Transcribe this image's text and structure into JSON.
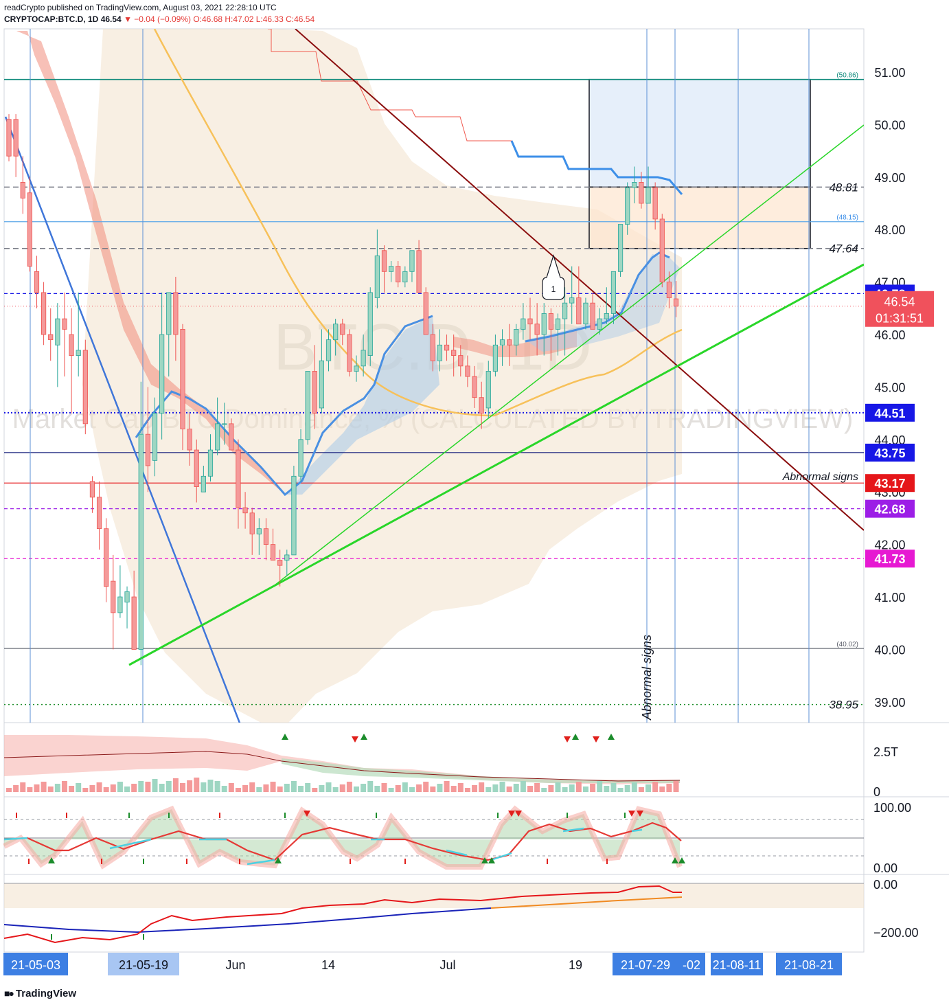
{
  "header": {
    "line1": "readCrypto published on TradingView.com, August 03, 2021 22:28:10 UTC",
    "symbol": "CRYPTOCAP:BTC.D, 1D",
    "last": "46.54",
    "change": "▼ −0.04 (−0.09%)",
    "ohlc": "O:46.68 H:47.02 L:46.33 C:46.54"
  },
  "watermark": {
    "ticker": "BTC.D, 1D",
    "description": "Market Cap BTC Dominance, % (CALCULATED BY TRADINGVIEW)"
  },
  "chart_data": {
    "type": "candlestick",
    "symbol": "CRYPTOCAP:BTC.D",
    "interval": "1D",
    "ylim": [
      38.6,
      51.9
    ],
    "y_ticks": [
      "51.00",
      "50.00",
      "49.00",
      "48.00",
      "45.00",
      "42.00",
      "41.00",
      "40.00",
      "39.00"
    ],
    "x_ticks": [
      {
        "label": "21-05-03",
        "highlight": true
      },
      {
        "label": "21-05-19",
        "highlight": true
      },
      {
        "label": "Jun",
        "highlight": false
      },
      {
        "label": "14",
        "highlight": false
      },
      {
        "label": "Jul",
        "highlight": false
      },
      {
        "label": "19",
        "highlight": false
      },
      {
        "label": "21-07-29",
        "highlight": true
      },
      {
        "label": "-02",
        "highlight": true
      },
      {
        "label": "21-08-11",
        "highlight": true
      },
      {
        "label": "21-08-21",
        "highlight": true
      }
    ],
    "candles_ohlc": [
      [
        50.1,
        50.2,
        49.3,
        49.4
      ],
      [
        50.1,
        50.2,
        49.0,
        49.4
      ],
      [
        48.9,
        49.4,
        48.3,
        48.6
      ],
      [
        48.7,
        49.0,
        47.2,
        47.3
      ],
      [
        47.2,
        47.5,
        46.5,
        46.8
      ],
      [
        46.8,
        47.0,
        45.8,
        46.0
      ],
      [
        46.0,
        46.5,
        45.5,
        45.9
      ],
      [
        45.8,
        46.6,
        45.0,
        46.3
      ],
      [
        46.3,
        46.8,
        45.2,
        46.1
      ],
      [
        46.0,
        46.5,
        44.5,
        45.6
      ],
      [
        45.6,
        46.8,
        45.2,
        45.7
      ],
      [
        45.7,
        45.9,
        44.1,
        44.3
      ],
      [
        43.2,
        43.3,
        42.6,
        42.9
      ],
      [
        42.9,
        43.2,
        41.9,
        42.3
      ],
      [
        42.3,
        42.5,
        40.9,
        41.2
      ],
      [
        41.3,
        41.8,
        40.0,
        40.7
      ],
      [
        40.7,
        41.6,
        40.6,
        41.0
      ],
      [
        40.9,
        41.2,
        40.4,
        41.1
      ],
      [
        41.0,
        41.5,
        40.0,
        40.0
      ],
      [
        40.0,
        45.1,
        39.7,
        44.1
      ],
      [
        44.1,
        45.0,
        43.0,
        43.5
      ],
      [
        43.6,
        44.8,
        43.3,
        44.5
      ],
      [
        44.5,
        46.8,
        44.0,
        46.0
      ],
      [
        46.0,
        46.8,
        45.2,
        46.8
      ],
      [
        46.8,
        47.1,
        45.5,
        46.0
      ],
      [
        46.1,
        46.2,
        43.8,
        44.2
      ],
      [
        44.2,
        44.5,
        43.5,
        43.8
      ],
      [
        43.8,
        44.0,
        42.8,
        43.1
      ],
      [
        43.0,
        43.5,
        43.0,
        43.3
      ],
      [
        43.3,
        44.1,
        43.2,
        43.8
      ],
      [
        43.8,
        44.8,
        43.7,
        44.3
      ],
      [
        44.3,
        44.7,
        43.9,
        44.3
      ],
      [
        44.3,
        44.4,
        43.8,
        43.8
      ],
      [
        43.8,
        44.0,
        42.3,
        42.7
      ],
      [
        42.7,
        43.0,
        42.3,
        42.6
      ],
      [
        42.6,
        42.7,
        41.8,
        42.2
      ],
      [
        42.2,
        42.5,
        41.8,
        42.3
      ],
      [
        42.3,
        42.5,
        41.7,
        42.0
      ],
      [
        42.0,
        42.3,
        41.7,
        41.7
      ],
      [
        41.7,
        41.9,
        41.2,
        41.6
      ],
      [
        41.7,
        41.9,
        41.4,
        41.8
      ],
      [
        41.8,
        43.5,
        41.8,
        43.3
      ],
      [
        43.3,
        44.2,
        43.2,
        44.0
      ],
      [
        44.0,
        45.3,
        43.9,
        45.3
      ],
      [
        45.3,
        45.8,
        44.2,
        44.5
      ],
      [
        44.6,
        46.1,
        44.5,
        45.5
      ],
      [
        45.5,
        46.1,
        45.3,
        45.9
      ],
      [
        45.9,
        46.3,
        45.6,
        46.2
      ],
      [
        46.2,
        46.3,
        45.8,
        46.0
      ],
      [
        46.0,
        46.1,
        45.2,
        45.3
      ],
      [
        45.3,
        45.6,
        45.1,
        45.4
      ],
      [
        45.4,
        46.0,
        45.2,
        45.7
      ],
      [
        45.6,
        46.9,
        45.4,
        46.8
      ],
      [
        46.7,
        48.0,
        46.5,
        47.5
      ],
      [
        47.6,
        47.7,
        46.8,
        47.2
      ],
      [
        47.2,
        47.4,
        47.0,
        47.3
      ],
      [
        47.3,
        47.4,
        46.9,
        47.0
      ],
      [
        47.0,
        47.3,
        46.9,
        47.2
      ],
      [
        47.2,
        47.6,
        47.0,
        47.6
      ],
      [
        47.6,
        47.8,
        46.8,
        46.8
      ],
      [
        46.8,
        46.9,
        46.0,
        46.0
      ],
      [
        46.0,
        46.2,
        45.3,
        45.5
      ],
      [
        45.5,
        46.1,
        45.3,
        45.8
      ],
      [
        45.8,
        46.0,
        45.5,
        45.7
      ],
      [
        45.7,
        46.0,
        45.2,
        45.6
      ],
      [
        45.6,
        45.8,
        45.2,
        45.4
      ],
      [
        45.4,
        45.6,
        45.0,
        45.2
      ],
      [
        45.2,
        45.4,
        44.6,
        44.8
      ],
      [
        44.8,
        45.1,
        44.2,
        44.5
      ],
      [
        44.6,
        45.5,
        44.4,
        45.3
      ],
      [
        45.3,
        46.0,
        45.2,
        45.8
      ],
      [
        45.8,
        46.1,
        45.4,
        45.9
      ],
      [
        45.9,
        46.2,
        45.4,
        45.8
      ],
      [
        45.8,
        46.2,
        45.6,
        46.1
      ],
      [
        46.1,
        46.6,
        45.9,
        46.3
      ],
      [
        46.3,
        46.7,
        45.9,
        46.2
      ],
      [
        46.2,
        46.6,
        45.6,
        46.0
      ],
      [
        46.0,
        46.6,
        45.6,
        46.4
      ],
      [
        46.4,
        46.5,
        45.5,
        46.1
      ],
      [
        46.1,
        46.4,
        45.6,
        46.3
      ],
      [
        46.3,
        46.9,
        45.6,
        46.6
      ],
      [
        46.6,
        47.3,
        46.2,
        46.7
      ],
      [
        46.7,
        47.3,
        46.2,
        46.2
      ],
      [
        46.2,
        46.7,
        46.1,
        46.6
      ],
      [
        46.6,
        46.8,
        46.1,
        46.1
      ],
      [
        46.1,
        46.5,
        46.0,
        46.3
      ],
      [
        46.3,
        46.9,
        46.2,
        46.4
      ],
      [
        46.4,
        47.2,
        46.2,
        47.2
      ],
      [
        47.2,
        48.1,
        47.1,
        48.1
      ],
      [
        48.1,
        48.9,
        47.9,
        48.8
      ],
      [
        48.8,
        49.2,
        48.5,
        48.9
      ],
      [
        48.9,
        49.1,
        48.4,
        48.5
      ],
      [
        48.5,
        49.2,
        48.5,
        48.8
      ],
      [
        48.8,
        48.9,
        48.0,
        48.2
      ],
      [
        48.2,
        48.3,
        46.9,
        47.0
      ],
      [
        47.0,
        47.2,
        46.5,
        46.7
      ],
      [
        46.68,
        47.02,
        46.33,
        46.54
      ]
    ],
    "price_labels": [
      {
        "value": "46.78",
        "color": "#1717e6"
      },
      {
        "value": "46.54",
        "sub": "01:31:51",
        "color": "#f0515c"
      },
      {
        "value": "44.51",
        "color": "#1717e6"
      },
      {
        "value": "43.75",
        "color": "#1717e6"
      },
      {
        "value": "43.17",
        "color": "#e5161a"
      },
      {
        "value": "42.68",
        "color": "#9c1ee6"
      },
      {
        "value": "41.73",
        "color": "#e619d2"
      }
    ],
    "line_annotations": [
      "48.81",
      "47.64",
      "38.95",
      "(50.86)",
      "(48.15)",
      "(40.02)",
      "Abnormal signs"
    ],
    "vertical_annotation": "Abnormal signs",
    "callout": "1",
    "volume_pane": {
      "y_ticks": [
        "2.5T",
        "0"
      ]
    },
    "oscillator_pane": {
      "y_ticks": [
        "100.00",
        "0.00"
      ]
    },
    "lower_pane": {
      "y_ticks": [
        "0.00",
        "−200.00"
      ]
    }
  },
  "footer": {
    "brand": "TradingView"
  }
}
